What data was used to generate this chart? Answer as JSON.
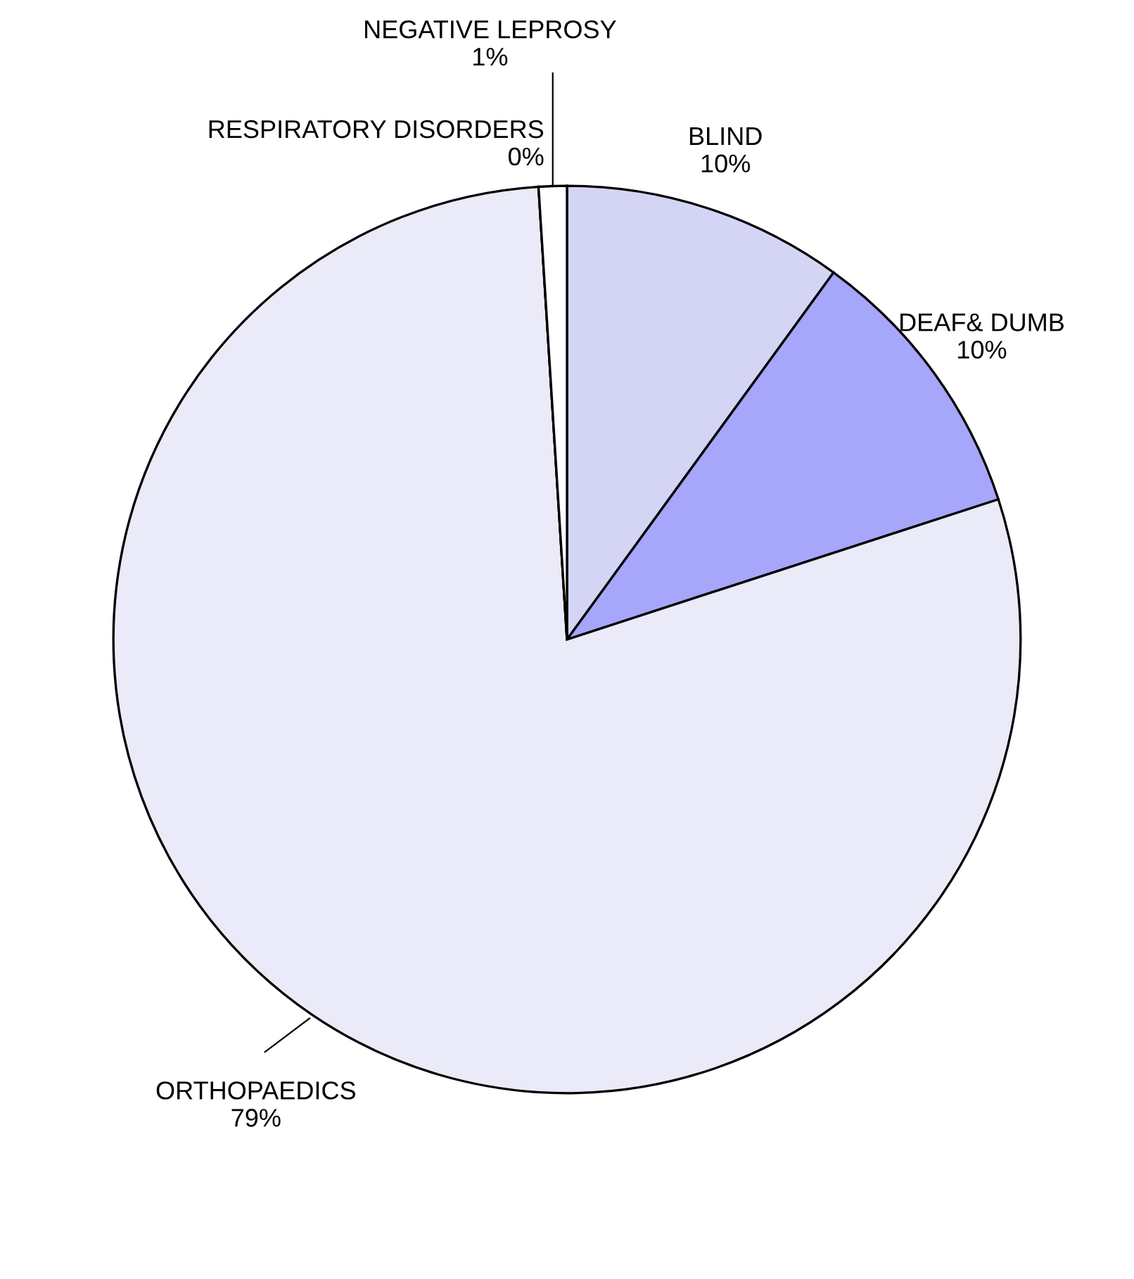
{
  "chart_data": {
    "type": "pie",
    "categories": [
      "BLIND",
      "DEAF& DUMB",
      "ORTHOPAEDICS",
      "RESPIRATORY DISORDERS",
      "NEGATIVE LEPROSY"
    ],
    "values": [
      10,
      10,
      79,
      0,
      1
    ],
    "colors": [
      "#d4d4f4",
      "#a6a6fa",
      "#eaeaf8",
      "#ffffff",
      "#ffffff"
    ],
    "value_labels": [
      "10%",
      "10%",
      "79%",
      "0%",
      "1%"
    ],
    "legend": false
  }
}
